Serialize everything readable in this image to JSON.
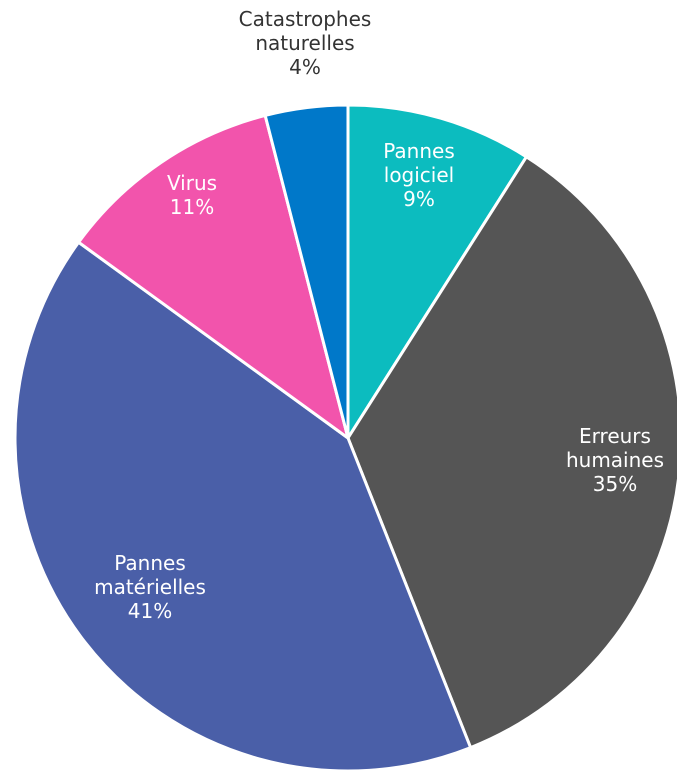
{
  "chart_data": {
    "type": "pie",
    "slices": [
      {
        "label": [
          "Pannes",
          "logiciel"
        ],
        "percent_label": "9%",
        "value": 9,
        "color": "#0CBCBF",
        "text_color": "#ffffff"
      },
      {
        "label": [
          "Erreurs",
          "humaines"
        ],
        "percent_label": "35%",
        "value": 35,
        "color": "#555555",
        "text_color": "#ffffff"
      },
      {
        "label": [
          "Pannes",
          "matérielles"
        ],
        "percent_label": "41%",
        "value": 41,
        "color": "#4A5FA8",
        "text_color": "#ffffff"
      },
      {
        "label": [
          "Virus"
        ],
        "percent_label": "11%",
        "value": 11,
        "color": "#F254AC",
        "text_color": "#ffffff"
      },
      {
        "label": [
          "Catastrophes",
          "naturelles"
        ],
        "percent_label": "4%",
        "value": 4,
        "color": "#0078C9",
        "text_color": "#333333"
      }
    ]
  }
}
